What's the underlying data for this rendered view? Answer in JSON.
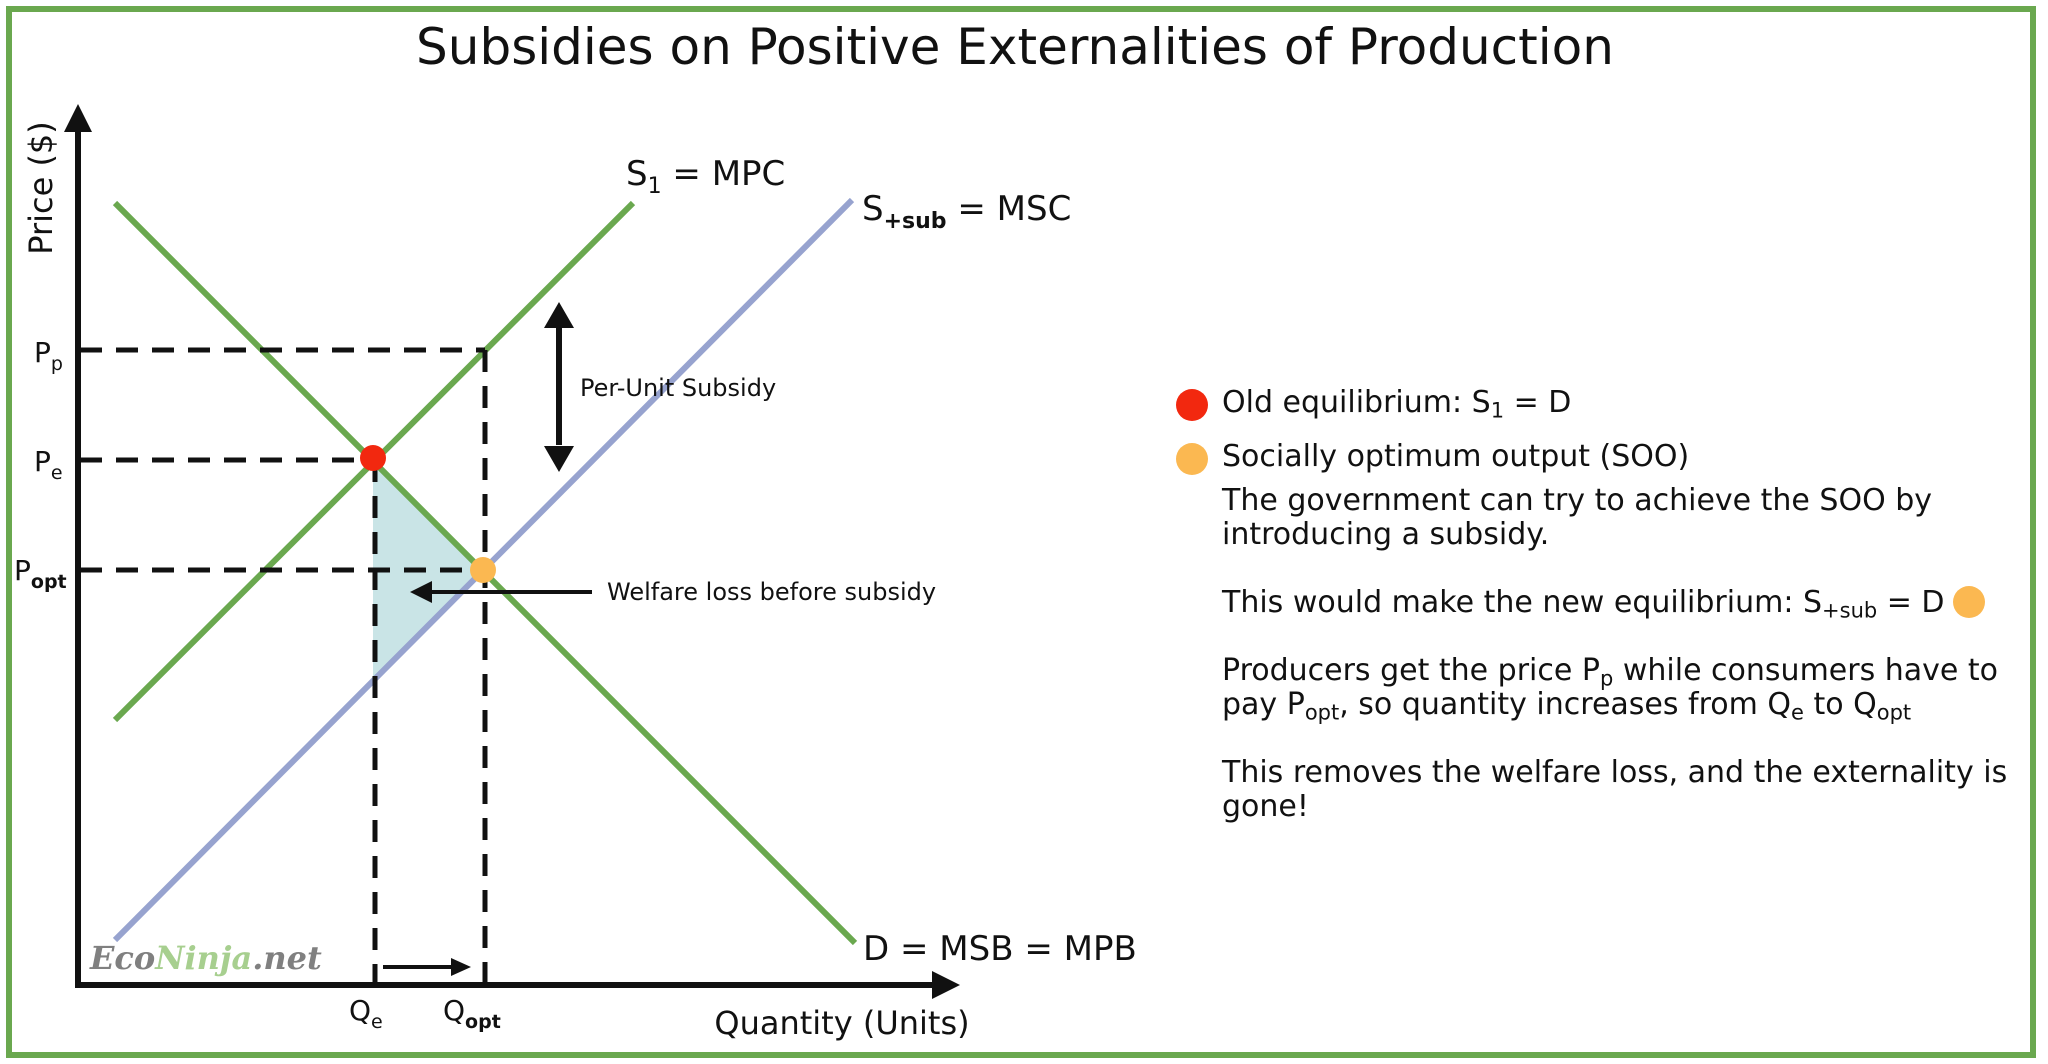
{
  "title": "Subsidies on Positive Externalities of Production",
  "colors": {
    "frame": "#6aa84f",
    "supply_mpc": "#6aa84f",
    "demand": "#6aa84f",
    "supply_msc": "#97a3cf",
    "welfare_loss": "#c9e4e6",
    "old_equilibrium": "#f2280f",
    "optimum": "#fbb851"
  },
  "axes": {
    "y_label": "Price ($)",
    "x_label": "Quantity (Units)"
  },
  "curves": {
    "s1": {
      "main": "S",
      "sub": "1",
      "rest": " = MPC"
    },
    "s_sub": {
      "main": "S",
      "sub": "+sub",
      "rest": " = MSC"
    },
    "demand": "D = MSB = MPB"
  },
  "price_labels": {
    "pp": {
      "main": "P",
      "sub": "p"
    },
    "pe": {
      "main": "P",
      "sub": "e"
    },
    "popt": {
      "main": "P",
      "sub": "opt"
    }
  },
  "quantity_labels": {
    "qe": {
      "main": "Q",
      "sub": "e"
    },
    "qopt": {
      "main": "Q",
      "sub": "opt"
    }
  },
  "annotations": {
    "per_unit_subsidy": "Per-Unit Subsidy",
    "welfare_loss": "Welfare loss before subsidy"
  },
  "watermark": {
    "part1": "Eco",
    "part2": "Ninja",
    "part3": ".net"
  },
  "legend": {
    "old_eq": {
      "before": "Old equilibrium: S",
      "sub": "1",
      "after": " = D"
    },
    "soo": "Socially optimum output (SOO)",
    "p1": "The government can try to achieve the SOO by introducing a subsidy.",
    "p2": {
      "before": "This would make the new equilibrium: S",
      "sub": "+sub",
      "after": " = D"
    },
    "p3": {
      "a": "Producers get the price P",
      "a_sub": "p",
      "b": " while consumers have to pay P",
      "b_sub": "opt",
      "c": ", so quantity increases from Q",
      "c_sub": "e",
      "d": " to Q",
      "d_sub": "opt"
    },
    "p4": "This removes the welfare loss, and the externality is gone!"
  }
}
